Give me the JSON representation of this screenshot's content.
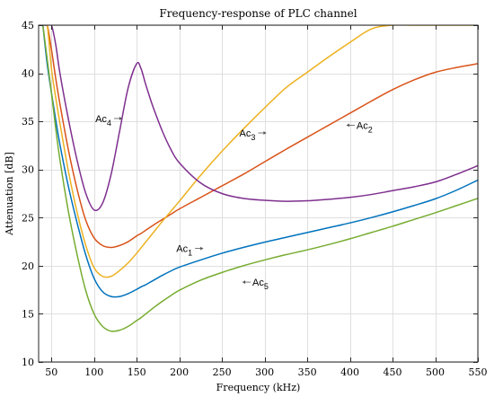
{
  "chart_data": {
    "type": "line",
    "title": "Frequency-response of PLC channel",
    "xlabel": "Frequency (kHz)",
    "ylabel": "Attenuation [dB]",
    "xlim": [
      35,
      550
    ],
    "ylim": [
      10,
      45
    ],
    "xticks": [
      50,
      100,
      150,
      200,
      250,
      300,
      350,
      400,
      450,
      500,
      550
    ],
    "yticks": [
      10,
      15,
      20,
      25,
      30,
      35,
      40,
      45
    ],
    "grid": true,
    "x": [
      40,
      45,
      50,
      55,
      60,
      70,
      80,
      90,
      100,
      110,
      120,
      130,
      140,
      150,
      155,
      160,
      165,
      170,
      180,
      190,
      200,
      225,
      250,
      275,
      300,
      325,
      350,
      375,
      400,
      425,
      450,
      475,
      500,
      525,
      550
    ],
    "series": [
      {
        "name": "Ac1",
        "color": "#0072BD",
        "values": [
          45,
          41,
          38,
          35.2,
          32.6,
          28.2,
          24.5,
          21.2,
          18.7,
          17.3,
          16.8,
          16.8,
          17.1,
          17.55,
          17.8,
          18.0,
          18.25,
          18.5,
          19.0,
          19.45,
          19.85,
          20.6,
          21.3,
          21.9,
          22.45,
          22.95,
          23.45,
          23.95,
          24.45,
          25.0,
          25.6,
          26.25,
          26.95,
          27.85,
          28.9
        ]
      },
      {
        "name": "Ac2",
        "color": "#D95319",
        "values": [
          45,
          45,
          42.5,
          39.5,
          36.8,
          32.0,
          28.0,
          24.8,
          22.9,
          22.1,
          21.9,
          22.1,
          22.5,
          23.1,
          23.35,
          23.65,
          23.95,
          24.25,
          24.8,
          25.35,
          25.9,
          27.1,
          28.3,
          29.5,
          30.8,
          32.1,
          33.35,
          34.6,
          35.85,
          37.1,
          38.3,
          39.3,
          40.1,
          40.6,
          41.0
        ]
      },
      {
        "name": "Ac3",
        "color": "#EDB120",
        "values": [
          45,
          45,
          40.5,
          37.5,
          34.8,
          29.8,
          25.6,
          22.2,
          19.8,
          18.9,
          18.9,
          19.5,
          20.3,
          21.3,
          21.85,
          22.4,
          22.95,
          23.5,
          24.6,
          25.65,
          26.7,
          29.4,
          31.9,
          34.2,
          36.4,
          38.5,
          40.1,
          41.7,
          43.2,
          44.6,
          45,
          45,
          45,
          45,
          45
        ]
      },
      {
        "name": "Ac4",
        "color": "#7E2F8E",
        "values": [
          45,
          45,
          45,
          43,
          40.0,
          35.2,
          31.0,
          27.6,
          25.8,
          26.5,
          29.5,
          34.0,
          38.5,
          41.0,
          40.5,
          39.0,
          37.6,
          36.3,
          34.0,
          32.1,
          30.7,
          28.6,
          27.5,
          27.0,
          26.8,
          26.7,
          26.75,
          26.9,
          27.1,
          27.4,
          27.8,
          28.2,
          28.7,
          29.5,
          30.4
        ]
      },
      {
        "name": "Ac5",
        "color": "#77AC30",
        "values": [
          45,
          41.5,
          38.0,
          34.3,
          31.0,
          25.6,
          21.2,
          17.5,
          15.0,
          13.7,
          13.2,
          13.3,
          13.7,
          14.3,
          14.6,
          14.95,
          15.3,
          15.65,
          16.3,
          16.9,
          17.45,
          18.5,
          19.3,
          20.0,
          20.6,
          21.15,
          21.65,
          22.2,
          22.8,
          23.45,
          24.1,
          24.8,
          25.5,
          26.25,
          27.0
        ]
      }
    ],
    "annotations": [
      {
        "label": "Ac",
        "sub": "1",
        "x": 230,
        "y": 21.8,
        "series": "Ac1",
        "arrow": "right"
      },
      {
        "label": "Ac",
        "sub": "2",
        "x": 394,
        "y": 34.6,
        "series": "Ac2",
        "arrow": "left"
      },
      {
        "label": "Ac",
        "sub": "3",
        "x": 304,
        "y": 33.8,
        "series": "Ac3",
        "arrow": "right"
      },
      {
        "label": "Ac",
        "sub": "4",
        "x": 135,
        "y": 35.3,
        "series": "Ac4",
        "arrow": "right"
      },
      {
        "label": "Ac",
        "sub": "5",
        "x": 272,
        "y": 18.3,
        "series": "Ac5",
        "arrow": "left"
      }
    ]
  }
}
